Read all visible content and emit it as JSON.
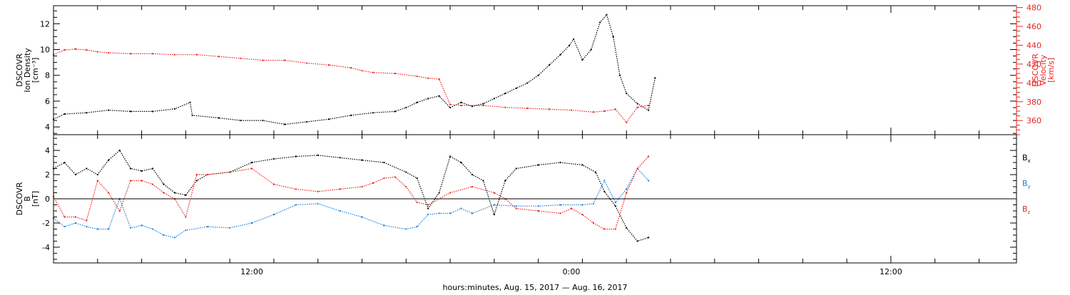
{
  "chart_data": [
    {
      "type": "line",
      "panel": "plasma",
      "left_axis": {
        "label_lines": [
          "DSCOVR",
          "Ion Density",
          "[cm⁻³]"
        ],
        "ylim": [
          3.4,
          13.4
        ],
        "ticks": [
          4,
          6,
          8,
          10,
          12
        ],
        "color": "#000000"
      },
      "right_axis": {
        "label_lines": [
          "DSCOVR",
          "Velocity",
          "[km/s]"
        ],
        "ylim": [
          345,
          482
        ],
        "ticks": [
          360,
          380,
          400,
          420,
          440,
          460,
          480
        ],
        "color": "#e8231f"
      },
      "series": [
        {
          "name": "Ion Density",
          "axis": "left",
          "color": "#000000",
          "x": [
            0,
            0.5,
            1.5,
            2.5,
            3.5,
            4.5,
            5.5,
            6.2,
            6.3,
            7.5,
            8.5,
            9.5,
            10.5,
            11.5,
            12.5,
            13.5,
            14.5,
            15.5,
            16.0,
            16.5,
            17.0,
            17.5,
            18.0,
            18.5,
            19.0,
            19.5,
            20.0,
            20.5,
            21.0,
            21.5,
            22.0,
            22.5,
            23.0,
            23.4,
            23.6,
            24.0,
            24.4,
            24.8,
            25.1,
            25.4,
            25.7,
            26.0,
            26.5,
            27.0,
            27.3
          ],
          "y": [
            4.6,
            5.0,
            5.1,
            5.3,
            5.2,
            5.2,
            5.4,
            5.9,
            4.9,
            4.7,
            4.5,
            4.5,
            4.2,
            4.4,
            4.6,
            4.9,
            5.1,
            5.2,
            5.5,
            5.9,
            6.2,
            6.4,
            5.5,
            5.9,
            5.6,
            5.8,
            6.2,
            6.6,
            7.0,
            7.4,
            8.0,
            8.8,
            9.6,
            10.3,
            10.8,
            9.2,
            10.0,
            12.1,
            12.7,
            11.0,
            8.0,
            6.6,
            5.8,
            5.3,
            7.8
          ]
        },
        {
          "name": "Velocity",
          "axis": "right",
          "color": "#e8231f",
          "x": [
            0,
            0.5,
            1.0,
            1.5,
            2.0,
            2.5,
            3.5,
            4.5,
            5.5,
            6.5,
            7.5,
            8.5,
            9.5,
            10.5,
            11.5,
            12.5,
            13.5,
            14.0,
            14.5,
            15.5,
            16.5,
            17.0,
            17.5,
            18.0,
            18.5,
            19.5,
            20.5,
            21.5,
            22.5,
            23.5,
            24.5,
            25.0,
            25.5,
            26.0,
            26.5,
            27.0
          ],
          "y": [
            430,
            435,
            436,
            435,
            433,
            432,
            431,
            431,
            430,
            430,
            428,
            426,
            424,
            424,
            421,
            419,
            416,
            413,
            411,
            410,
            407,
            405,
            404,
            377,
            376,
            376,
            374,
            373,
            372,
            371,
            369,
            370,
            372,
            358,
            374,
            376
          ]
        }
      ]
    },
    {
      "type": "line",
      "panel": "magnetic-field",
      "left_axis": {
        "label_lines": [
          "DSCOVR",
          "B",
          "[nT]"
        ],
        "ylim": [
          -5.3,
          5.3
        ],
        "ticks": [
          -4,
          -2,
          0,
          2,
          4
        ],
        "zero_line": true
      },
      "legend": {
        "placement": "right",
        "entries": [
          {
            "label": "B",
            "sub": "x",
            "color": "#000000"
          },
          {
            "label": "B",
            "sub": "y",
            "color": "#1e7fd6"
          },
          {
            "label": "B",
            "sub": "z",
            "color": "#e8231f"
          }
        ]
      },
      "series": [
        {
          "name": "Bx",
          "color": "#000000",
          "x": [
            0,
            0.5,
            1.0,
            1.5,
            2.0,
            2.5,
            3.0,
            3.5,
            4.0,
            4.5,
            5.0,
            5.5,
            6.0,
            6.5,
            7.0,
            8.0,
            9.0,
            10.0,
            11.0,
            12.0,
            13.0,
            14.0,
            15.0,
            16.0,
            16.5,
            17.0,
            17.5,
            18.0,
            18.5,
            19.0,
            19.5,
            20.0,
            20.5,
            21.0,
            22.0,
            23.0,
            24.0,
            24.6,
            25.0,
            25.5,
            26.0,
            26.5,
            27.0
          ],
          "y": [
            2.5,
            3.0,
            2.0,
            2.5,
            2.0,
            3.2,
            4.0,
            2.5,
            2.3,
            2.5,
            1.2,
            0.5,
            0.3,
            1.5,
            2.0,
            2.2,
            3.0,
            3.3,
            3.5,
            3.6,
            3.4,
            3.2,
            3.0,
            2.2,
            1.7,
            -0.8,
            0.5,
            3.5,
            3.0,
            2.0,
            1.5,
            -1.3,
            1.5,
            2.5,
            2.8,
            3.0,
            2.8,
            2.2,
            0.6,
            -0.6,
            -2.4,
            -3.5,
            -3.2
          ]
        },
        {
          "name": "By",
          "color": "#1e7fd6",
          "x": [
            0,
            0.5,
            1.0,
            1.5,
            2.0,
            2.5,
            3.0,
            3.5,
            4.0,
            4.5,
            5.0,
            5.5,
            6.0,
            7.0,
            8.0,
            9.0,
            10.0,
            11.0,
            12.0,
            13.0,
            14.0,
            15.0,
            16.0,
            16.5,
            17.0,
            17.5,
            18.0,
            18.5,
            19.0,
            20.0,
            21.0,
            22.0,
            23.0,
            24.0,
            24.5,
            25.0,
            25.5,
            26.0,
            26.5,
            27.0
          ],
          "y": [
            -1.6,
            -2.3,
            -2.0,
            -2.3,
            -2.5,
            -2.5,
            0.0,
            -2.4,
            -2.2,
            -2.5,
            -3.0,
            -3.2,
            -2.6,
            -2.3,
            -2.4,
            -2.0,
            -1.3,
            -0.5,
            -0.4,
            -1.0,
            -1.5,
            -2.2,
            -2.5,
            -2.3,
            -1.3,
            -1.2,
            -1.2,
            -0.8,
            -1.2,
            -0.5,
            -0.6,
            -0.6,
            -0.5,
            -0.5,
            -0.4,
            1.5,
            -0.3,
            0.8,
            2.5,
            1.5
          ]
        },
        {
          "name": "Bz",
          "color": "#e8231f",
          "x": [
            0,
            0.5,
            1.0,
            1.5,
            2.0,
            2.5,
            3.0,
            3.5,
            4.0,
            4.5,
            5.0,
            5.5,
            6.0,
            6.5,
            7.0,
            8.0,
            9.0,
            10.0,
            11.0,
            12.0,
            13.0,
            14.0,
            14.5,
            15.0,
            15.5,
            16.0,
            16.5,
            17.0,
            18.0,
            19.0,
            20.0,
            20.5,
            21.0,
            22.0,
            23.0,
            23.5,
            24.0,
            24.5,
            25.0,
            25.5,
            26.0,
            26.5,
            27.0
          ],
          "y": [
            0.2,
            -1.5,
            -1.5,
            -1.8,
            1.5,
            0.5,
            -1.0,
            1.5,
            1.5,
            1.2,
            0.5,
            0.0,
            -1.5,
            2.0,
            2.0,
            2.2,
            2.5,
            1.2,
            0.8,
            0.6,
            0.8,
            1.0,
            1.3,
            1.7,
            1.8,
            1.0,
            -0.3,
            -0.5,
            0.5,
            1.0,
            0.5,
            0.0,
            -0.8,
            -1.0,
            -1.2,
            -0.8,
            -1.3,
            -2.0,
            -2.5,
            -2.5,
            0.5,
            2.5,
            3.5
          ]
        }
      ]
    }
  ],
  "x_axis": {
    "title": "hours:minutes, Aug. 15, 2017 — Aug. 16, 2017",
    "xlim": [
      0,
      43.7
    ],
    "tick_hours": [
      9.0,
      23.5,
      38.0
    ],
    "tick_labels": [
      "12:00",
      "0:00",
      "12:00"
    ]
  }
}
